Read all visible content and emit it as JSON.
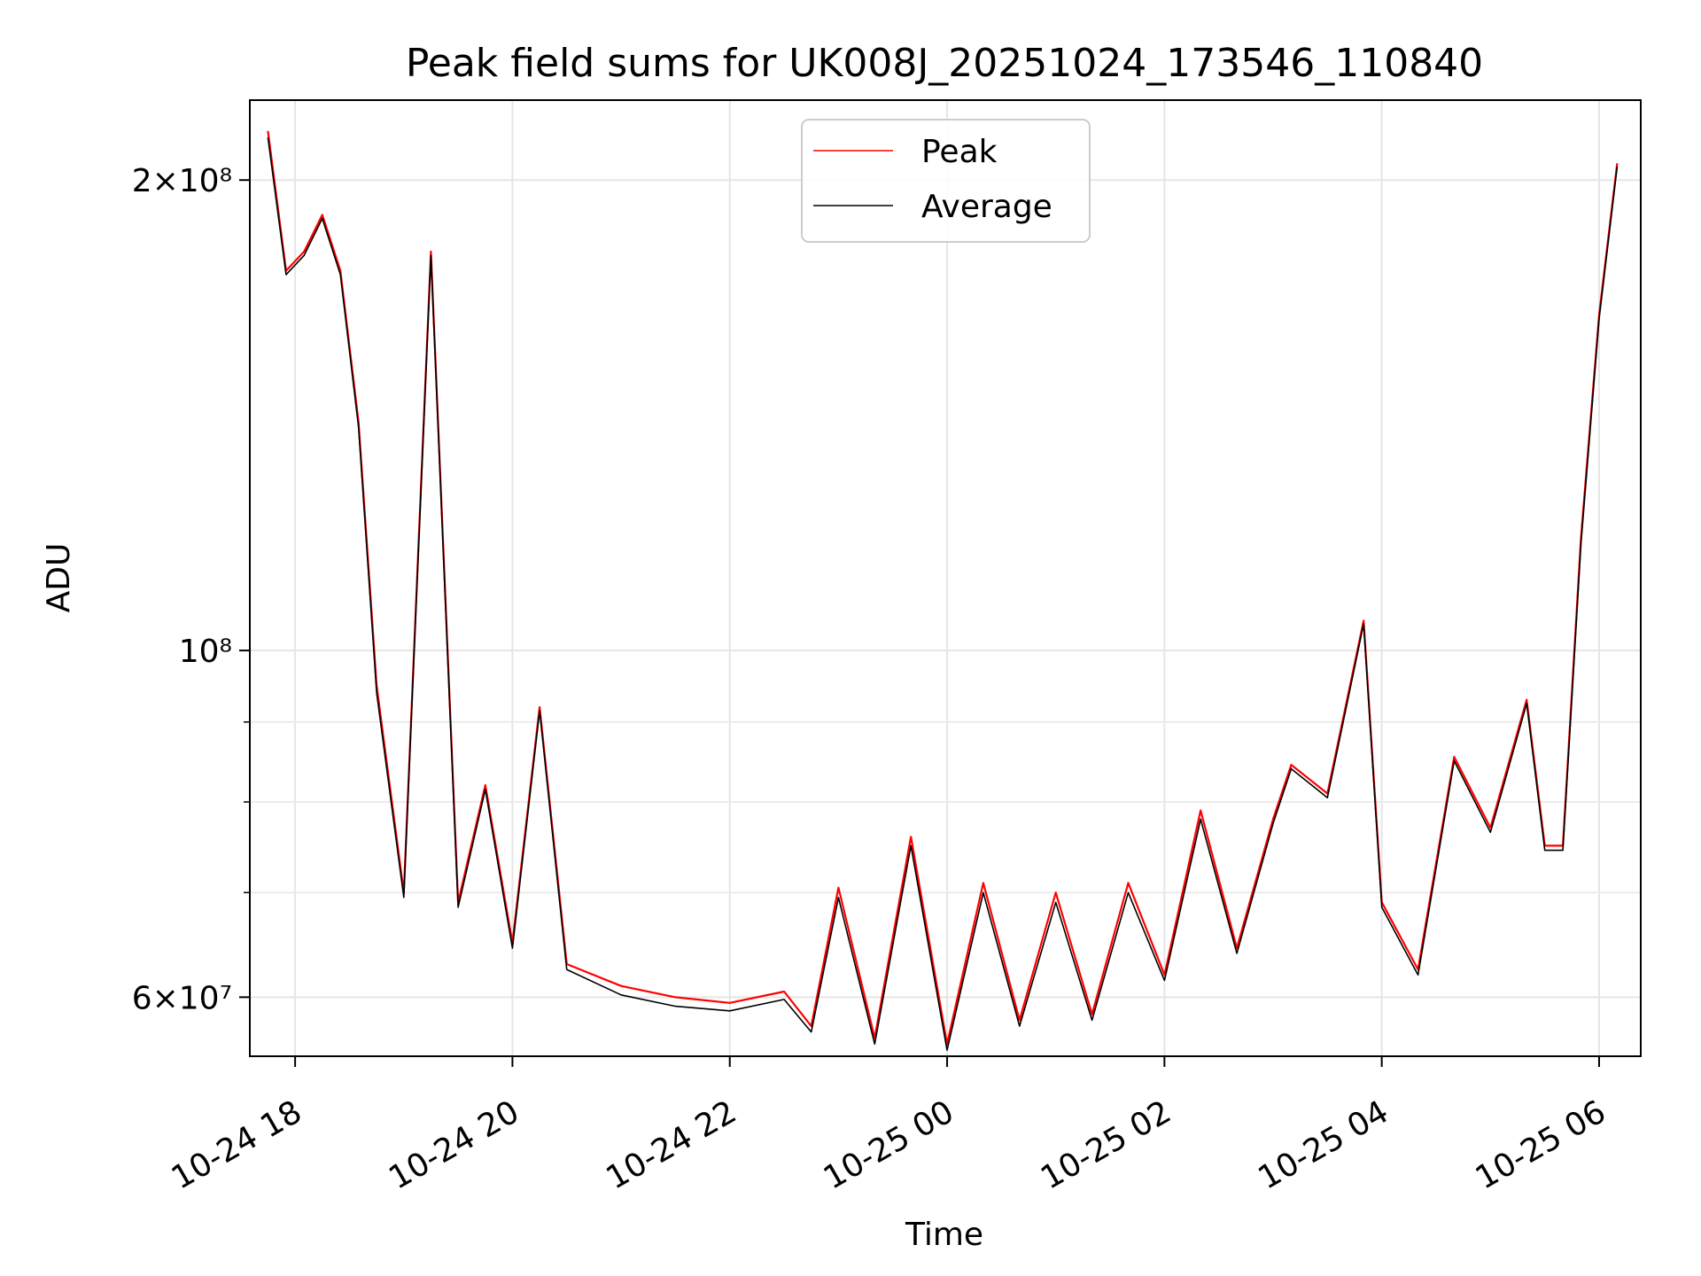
{
  "chart_data": {
    "type": "line",
    "title": "Peak field sums for UK008J_20251024_173546_110840",
    "xlabel": "Time",
    "ylabel": "ADU",
    "yscale": "log",
    "grid": true,
    "legend_position": "top-center",
    "xlim": [
      "2025-10-24 17:35",
      "2025-10-25 06:23"
    ],
    "ylim": [
      55000000,
      225000000
    ],
    "x_ticks": [
      {
        "t": "2025-10-24 18:00",
        "label": "10-24 18"
      },
      {
        "t": "2025-10-24 20:00",
        "label": "10-24 20"
      },
      {
        "t": "2025-10-24 22:00",
        "label": "10-24 22"
      },
      {
        "t": "2025-10-25 00:00",
        "label": "10-25 00"
      },
      {
        "t": "2025-10-25 02:00",
        "label": "10-25 02"
      },
      {
        "t": "2025-10-25 04:00",
        "label": "10-25 04"
      },
      {
        "t": "2025-10-25 06:00",
        "label": "10-25 06"
      }
    ],
    "y_ticks": [
      {
        "v": 60000000,
        "label": "6×10⁷"
      },
      {
        "v": 100000000,
        "label": "10⁸"
      },
      {
        "v": 200000000,
        "label": "2×10⁸"
      }
    ],
    "y_minor_ticks": [
      70000000,
      80000000,
      90000000
    ],
    "series": [
      {
        "name": "Peak",
        "color": "#ff0000",
        "x": [
          "2025-10-24 17:45",
          "2025-10-24 17:55",
          "2025-10-24 18:05",
          "2025-10-24 18:15",
          "2025-10-24 18:25",
          "2025-10-24 18:35",
          "2025-10-24 18:45",
          "2025-10-24 19:00",
          "2025-10-24 19:15",
          "2025-10-24 19:30",
          "2025-10-24 19:45",
          "2025-10-24 20:00",
          "2025-10-24 20:15",
          "2025-10-24 20:30",
          "2025-10-24 21:00",
          "2025-10-24 21:30",
          "2025-10-24 22:00",
          "2025-10-24 22:30",
          "2025-10-24 22:45",
          "2025-10-24 23:00",
          "2025-10-24 23:20",
          "2025-10-24 23:40",
          "2025-10-25 00:00",
          "2025-10-25 00:20",
          "2025-10-25 00:40",
          "2025-10-25 01:00",
          "2025-10-25 01:20",
          "2025-10-25 01:40",
          "2025-10-25 02:00",
          "2025-10-25 02:20",
          "2025-10-25 02:40",
          "2025-10-25 03:00",
          "2025-10-25 03:10",
          "2025-10-25 03:30",
          "2025-10-25 03:50",
          "2025-10-25 04:00",
          "2025-10-25 04:20",
          "2025-10-25 04:40",
          "2025-10-25 05:00",
          "2025-10-25 05:20",
          "2025-10-25 05:30",
          "2025-10-25 05:40",
          "2025-10-25 05:50",
          "2025-10-25 06:00",
          "2025-10-25 06:10"
        ],
        "values": [
          215000000,
          175000000,
          180000000,
          190000000,
          175000000,
          140000000,
          95000000,
          70000000,
          180000000,
          69000000,
          82000000,
          65000000,
          92000000,
          63000000,
          61000000,
          60000000,
          59500000,
          60500000,
          57500000,
          70500000,
          56500000,
          76000000,
          56000000,
          71000000,
          58000000,
          70000000,
          58500000,
          71000000,
          62000000,
          79000000,
          64500000,
          78000000,
          84500000,
          81000000,
          104500000,
          69000000,
          62500000,
          85500000,
          77000000,
          93000000,
          75000000,
          75000000,
          118000000,
          164000000,
          205000000
        ]
      },
      {
        "name": "Average",
        "color": "#000000",
        "x": [
          "2025-10-24 17:45",
          "2025-10-24 17:55",
          "2025-10-24 18:05",
          "2025-10-24 18:15",
          "2025-10-24 18:25",
          "2025-10-24 18:35",
          "2025-10-24 18:45",
          "2025-10-24 19:00",
          "2025-10-24 19:15",
          "2025-10-24 19:30",
          "2025-10-24 19:45",
          "2025-10-24 20:00",
          "2025-10-24 20:15",
          "2025-10-24 20:30",
          "2025-10-24 21:00",
          "2025-10-24 21:30",
          "2025-10-24 22:00",
          "2025-10-24 22:30",
          "2025-10-24 22:45",
          "2025-10-24 23:00",
          "2025-10-24 23:20",
          "2025-10-24 23:40",
          "2025-10-25 00:00",
          "2025-10-25 00:20",
          "2025-10-25 00:40",
          "2025-10-25 01:00",
          "2025-10-25 01:20",
          "2025-10-25 01:40",
          "2025-10-25 02:00",
          "2025-10-25 02:20",
          "2025-10-25 02:40",
          "2025-10-25 03:00",
          "2025-10-25 03:10",
          "2025-10-25 03:30",
          "2025-10-25 03:50",
          "2025-10-25 04:00",
          "2025-10-25 04:20",
          "2025-10-25 04:40",
          "2025-10-25 05:00",
          "2025-10-25 05:20",
          "2025-10-25 05:30",
          "2025-10-25 05:40",
          "2025-10-25 05:50",
          "2025-10-25 06:00",
          "2025-10-25 06:10"
        ],
        "values": [
          213000000,
          174000000,
          179000000,
          189000000,
          174000000,
          139000000,
          94000000,
          69500000,
          179000000,
          68500000,
          81500000,
          64500000,
          91500000,
          62500000,
          60200000,
          59200000,
          58800000,
          59800000,
          57000000,
          69500000,
          56000000,
          75000000,
          55500000,
          70000000,
          57500000,
          69000000,
          58000000,
          70000000,
          61500000,
          78000000,
          64000000,
          77500000,
          84000000,
          80500000,
          104000000,
          68500000,
          62000000,
          85000000,
          76500000,
          92500000,
          74500000,
          74500000,
          117000000,
          163000000,
          204000000
        ]
      }
    ]
  }
}
